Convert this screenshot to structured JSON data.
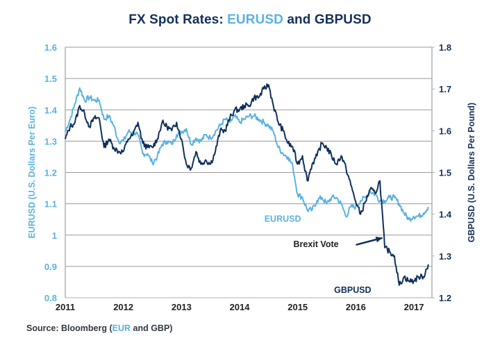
{
  "title": {
    "prefix": "FX Spot Rates: ",
    "accent": "EURUSD",
    "suffix": " and GBPUSD"
  },
  "source": {
    "prefix": "Source: Bloomberg (",
    "accent": "EUR",
    "suffix": " and GBP)"
  },
  "colors": {
    "eurusd": "#5ab2e0",
    "gbpusd": "#0f2f5a",
    "grid": "#9a9a9a",
    "axis": "#b0b0b0"
  },
  "chart_data": {
    "type": "line",
    "title": "FX Spot Rates: EURUSD and GBPUSD",
    "xlabel": "",
    "x_ticks": [
      "2011",
      "2012",
      "2013",
      "2014",
      "2015",
      "2016",
      "2017"
    ],
    "x_range": [
      2011.0,
      2017.31
    ],
    "y_left": {
      "label": "EURUSD (U.S. Dollars Per Euro)",
      "ticks": [
        "0.8",
        "0.9",
        "1",
        "1.1",
        "1.2",
        "1.3",
        "1.4",
        "1.5",
        "1.6"
      ],
      "range": [
        0.8,
        1.6
      ]
    },
    "y_right": {
      "label": "GBPUSD (U.S. Dollars Per Pound)",
      "ticks": [
        "1.2",
        "1.3",
        "1.4",
        "1.5",
        "1.6",
        "1.7",
        "1.8"
      ],
      "range": [
        1.2,
        1.8
      ]
    },
    "grid": true,
    "x_start": 2011.0,
    "x_step_years": 0.0833,
    "series": [
      {
        "name": "EURUSD",
        "axis": "left",
        "values": [
          1.33,
          1.37,
          1.42,
          1.47,
          1.43,
          1.44,
          1.43,
          1.43,
          1.37,
          1.38,
          1.35,
          1.3,
          1.3,
          1.33,
          1.33,
          1.32,
          1.26,
          1.26,
          1.23,
          1.25,
          1.29,
          1.3,
          1.29,
          1.32,
          1.33,
          1.34,
          1.29,
          1.31,
          1.3,
          1.32,
          1.31,
          1.33,
          1.35,
          1.37,
          1.36,
          1.38,
          1.36,
          1.37,
          1.38,
          1.38,
          1.37,
          1.36,
          1.35,
          1.33,
          1.28,
          1.26,
          1.25,
          1.22,
          1.13,
          1.12,
          1.08,
          1.08,
          1.11,
          1.12,
          1.1,
          1.12,
          1.12,
          1.1,
          1.06,
          1.09,
          1.09,
          1.11,
          1.12,
          1.14,
          1.13,
          1.11,
          1.11,
          1.12,
          1.12,
          1.1,
          1.07,
          1.05,
          1.06,
          1.06,
          1.07,
          1.09
        ]
      },
      {
        "name": "GBPUSD",
        "axis": "right",
        "values": [
          1.58,
          1.61,
          1.62,
          1.66,
          1.64,
          1.61,
          1.63,
          1.63,
          1.56,
          1.58,
          1.56,
          1.55,
          1.55,
          1.58,
          1.59,
          1.62,
          1.57,
          1.56,
          1.56,
          1.58,
          1.62,
          1.61,
          1.6,
          1.62,
          1.58,
          1.52,
          1.51,
          1.55,
          1.52,
          1.53,
          1.52,
          1.55,
          1.6,
          1.6,
          1.63,
          1.65,
          1.65,
          1.66,
          1.66,
          1.68,
          1.68,
          1.7,
          1.71,
          1.66,
          1.62,
          1.6,
          1.57,
          1.56,
          1.52,
          1.54,
          1.48,
          1.52,
          1.54,
          1.57,
          1.56,
          1.54,
          1.52,
          1.54,
          1.51,
          1.47,
          1.43,
          1.4,
          1.43,
          1.46,
          1.45,
          1.48,
          1.32,
          1.31,
          1.3,
          1.23,
          1.25,
          1.24,
          1.24,
          1.25,
          1.25,
          1.28
        ]
      }
    ],
    "annotations": [
      {
        "text": "EURUSD",
        "series": "EURUSD",
        "x": 2015.0,
        "y_right": 1.39
      },
      {
        "text": "GBPUSD",
        "series": "GBPUSD",
        "x": 2016.2,
        "y_right": 1.22
      },
      {
        "text": "Brexit Vote",
        "arrow_to_x": 2016.48,
        "arrow_to_y_right": 1.34,
        "x": 2015.5,
        "y_right": 1.33
      }
    ]
  }
}
